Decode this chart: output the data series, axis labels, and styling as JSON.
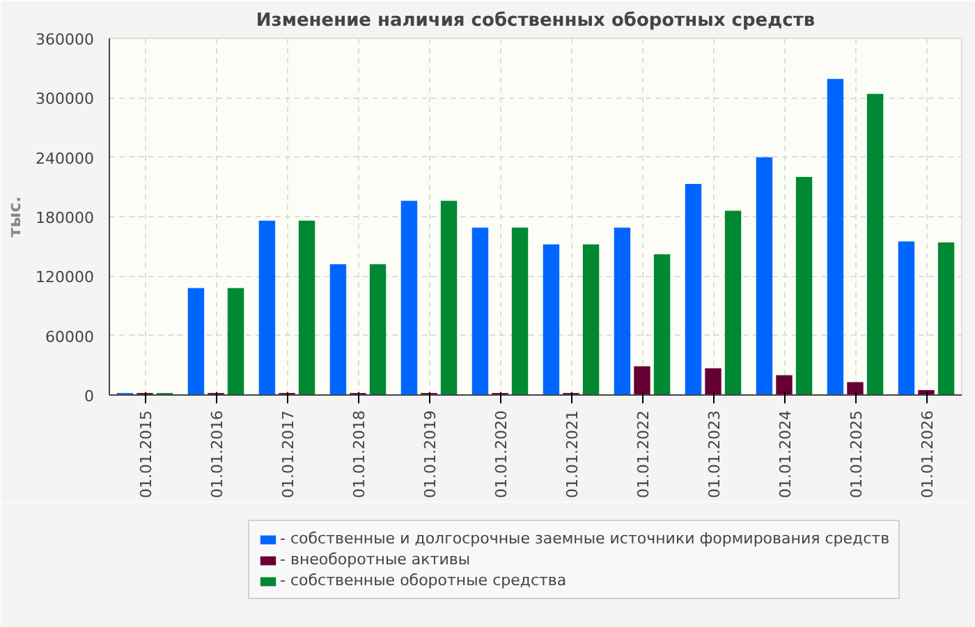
{
  "chart_data": {
    "type": "bar",
    "title": "Изменение наличия собственных оборотных средств",
    "ylabel": "тыс.",
    "categories": [
      "01.01.2015",
      "01.01.2016",
      "01.01.2017",
      "01.01.2018",
      "01.01.2019",
      "01.01.2020",
      "01.01.2021",
      "01.01.2022",
      "01.01.2023",
      "01.01.2024",
      "01.01.2025",
      "01.01.2026"
    ],
    "series": [
      {
        "name": "- собственные и долгосрочные заемные источники формирования средств",
        "color": "#0066ff",
        "values": [
          2000,
          108000,
          176000,
          132000,
          196000,
          169000,
          152000,
          169000,
          213000,
          240000,
          319000,
          155000
        ]
      },
      {
        "name": "- внеоборотные активы",
        "color": "#660033",
        "values": [
          2000,
          2000,
          2000,
          2000,
          2000,
          2000,
          2000,
          29000,
          27000,
          20000,
          13000,
          5000
        ]
      },
      {
        "name": "- собственные оборотные средства",
        "color": "#008833",
        "values": [
          2000,
          108000,
          176000,
          132000,
          196000,
          169000,
          152000,
          142000,
          186000,
          220000,
          304000,
          154000
        ]
      }
    ],
    "ylim": [
      0,
      360000
    ],
    "yticks": [
      0,
      60000,
      120000,
      180000,
      240000,
      300000,
      360000
    ],
    "grid": true,
    "legend": "bottom"
  }
}
